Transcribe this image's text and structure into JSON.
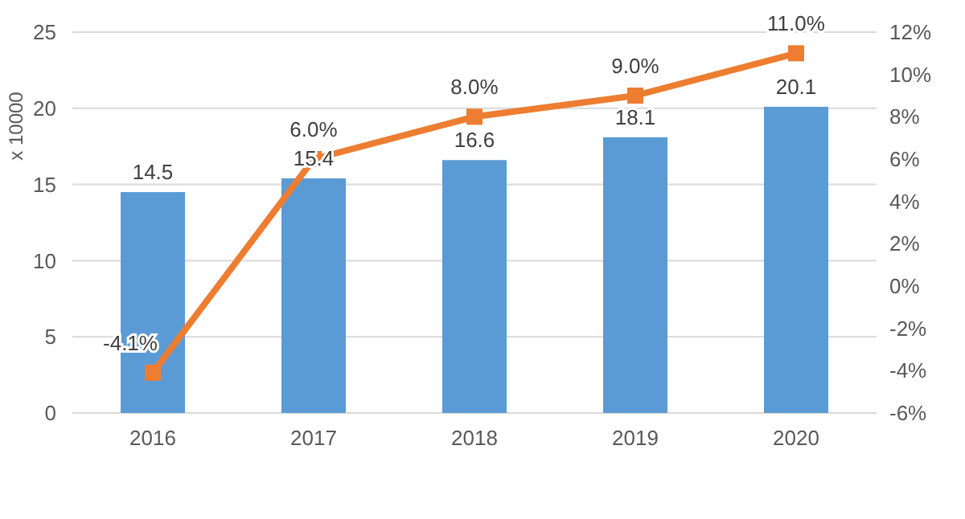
{
  "chart_data": {
    "type": "bar",
    "ylabel": "x 10000",
    "categories": [
      "2016",
      "2017",
      "2018",
      "2019",
      "2020"
    ],
    "series": [
      {
        "color": "#5b9bd5",
        "values": [
          14.5,
          15.4,
          16.6,
          18.1,
          20.1
        ],
        "value_labels": [
          "14.5",
          "15.4",
          "16.6",
          "18.1",
          "20.1"
        ]
      },
      {
        "type": "line",
        "axis": "y2",
        "color": "#ed7d31",
        "marker": "square",
        "values": [
          -4.1,
          6.0,
          8.0,
          9.0,
          11.0
        ],
        "value_labels": [
          "-4.1%",
          "6.0%",
          "8.0%",
          "9.0%",
          "11.0%"
        ]
      }
    ],
    "ylim": [
      0,
      25
    ],
    "yticks": [
      0,
      5,
      10,
      15,
      20,
      25
    ],
    "y2lim": [
      -6,
      12
    ],
    "y2ticks": [
      {
        "value": -6,
        "label": "-6%"
      },
      {
        "value": -4,
        "label": "-4%"
      },
      {
        "value": -2,
        "label": "-2%"
      },
      {
        "value": 0,
        "label": "0%"
      },
      {
        "value": 2,
        "label": "2%"
      },
      {
        "value": 4,
        "label": "4%"
      },
      {
        "value": 6,
        "label": "6%"
      },
      {
        "value": 8,
        "label": "8%"
      },
      {
        "value": 10,
        "label": "10%"
      },
      {
        "value": 12,
        "label": "12%"
      }
    ],
    "grid": "y"
  }
}
